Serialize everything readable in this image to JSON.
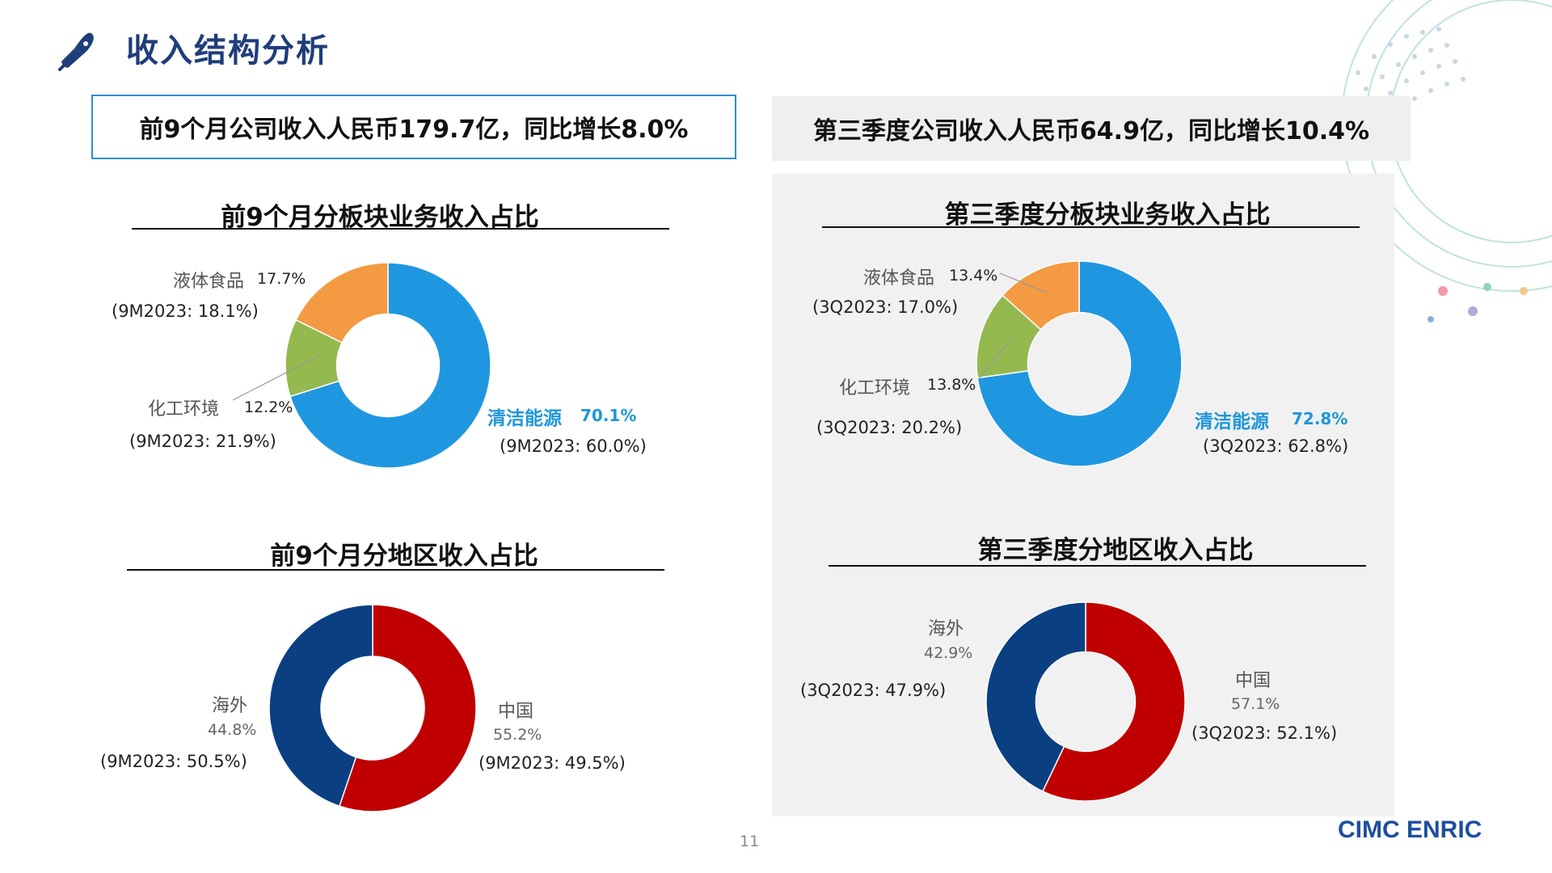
{
  "page": {
    "title": "收入结构分析",
    "page_number": "11",
    "logo": "CIMC ENRIC",
    "summary_left": "前9个月公司收入人民币179.7亿，同比增长8.0%",
    "summary_right": "第三季度公司收入人民币64.9亿，同比增长10.4%"
  },
  "colors": {
    "clean_energy": "#1f97e0",
    "chemical": "#94b94f",
    "liquid_food": "#f39a43",
    "china": "#c00000",
    "overseas": "#0a3f82",
    "accent": "#1f3d7a"
  },
  "chart_data": [
    {
      "type": "pie",
      "title": "前9个月分板块业务收入占比",
      "slices": [
        {
          "label": "清洁能源",
          "value": 70.1,
          "value_text": "70.1%",
          "prev_text": "(9M2023: 60.0%)"
        },
        {
          "label": "化工环境",
          "value": 12.2,
          "value_text": "12.2%",
          "prev_text": "(9M2023: 21.9%)"
        },
        {
          "label": "液体食品",
          "value": 17.7,
          "value_text": "17.7%",
          "prev_text": "(9M2023: 18.1%)"
        }
      ]
    },
    {
      "type": "pie",
      "title": "第三季度分板块业务收入占比",
      "slices": [
        {
          "label": "清洁能源",
          "value": 72.8,
          "value_text": "72.8%",
          "prev_text": "(3Q2023: 62.8%)"
        },
        {
          "label": "化工环境",
          "value": 13.8,
          "value_text": "13.8%",
          "prev_text": "(3Q2023: 20.2%)"
        },
        {
          "label": "液体食品",
          "value": 13.4,
          "value_text": "13.4%",
          "prev_text": "(3Q2023: 17.0%)"
        }
      ]
    },
    {
      "type": "pie",
      "title": "前9个月分地区收入占比",
      "slices": [
        {
          "label": "中国",
          "value": 55.2,
          "value_text": "55.2%",
          "prev_text": "(9M2023: 49.5%)"
        },
        {
          "label": "海外",
          "value": 44.8,
          "value_text": "44.8%",
          "prev_text": "(9M2023: 50.5%)"
        }
      ]
    },
    {
      "type": "pie",
      "title": "第三季度分地区收入占比",
      "slices": [
        {
          "label": "中国",
          "value": 57.1,
          "value_text": "57.1%",
          "prev_text": "(3Q2023: 52.1%)"
        },
        {
          "label": "海外",
          "value": 42.9,
          "value_text": "42.9%",
          "prev_text": "(3Q2023: 47.9%)"
        }
      ]
    }
  ]
}
